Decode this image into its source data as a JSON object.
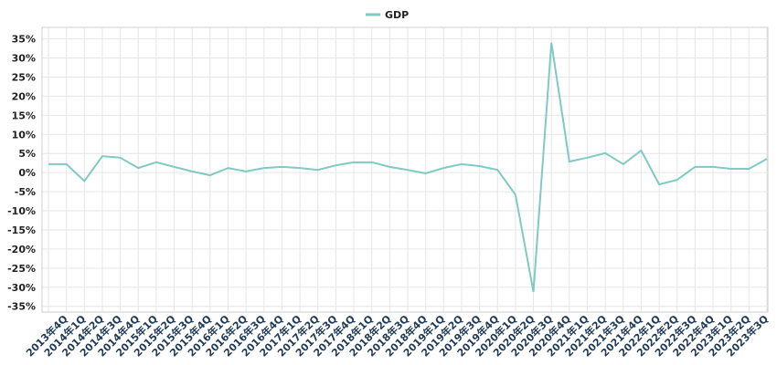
{
  "chart_data": {
    "type": "line",
    "categories": [
      null,
      "2013年4Q",
      "2014年1Q",
      "2014年2Q",
      "2014年3Q",
      "2014年4Q",
      "2015年1Q",
      "2015年2Q",
      "2015年3Q",
      "2015年4Q",
      "2016年1Q",
      "2016年2Q",
      "2016年3Q",
      "2016年4Q",
      "2017年1Q",
      "2017年2Q",
      "2017年3Q",
      "2017年4Q",
      "2018年1Q",
      "2018年2Q",
      "2018年3Q",
      "2018年4Q",
      "2019年1Q",
      "2019年2Q",
      "2019年3Q",
      "2019年4Q",
      "2020年1Q",
      "2020年2Q",
      "2020年3Q",
      "2020年4Q",
      "2021年1Q",
      "2021年2Q",
      "2021年3Q",
      "2021年4Q",
      "2022年1Q",
      "2022年2Q",
      "2022年3Q",
      "2022年4Q",
      "2023年1Q",
      "2023年2Q",
      "2023年3Q"
    ],
    "series": [
      {
        "name": "GDP",
        "color": "#7fcac3",
        "values": [
          2.2,
          2.2,
          -2.2,
          4.3,
          3.9,
          1.2,
          2.7,
          1.5,
          0.3,
          -0.7,
          1.2,
          0.3,
          1.2,
          1.5,
          1.2,
          0.7,
          1.9,
          2.7,
          2.7,
          1.5,
          0.7,
          -0.2,
          1.2,
          2.2,
          1.7,
          0.7,
          -5.8,
          -31.2,
          34.0,
          2.9,
          3.9,
          5.1,
          2.2,
          5.8,
          -3.1,
          -1.9,
          1.5,
          1.5,
          1.0,
          1.0,
          3.6
        ]
      }
    ],
    "ylim": [
      -36.5,
      38
    ],
    "yticks": [
      {
        "value": -35,
        "label": "-35%"
      },
      {
        "value": -30,
        "label": "-30%"
      },
      {
        "value": -25,
        "label": "-25%"
      },
      {
        "value": -20,
        "label": "-20%"
      },
      {
        "value": -15,
        "label": "-15%"
      },
      {
        "value": -10,
        "label": "-10%"
      },
      {
        "value": -5,
        "label": "-5%"
      },
      {
        "value": 0,
        "label": "0%"
      },
      {
        "value": 5,
        "label": "5%"
      },
      {
        "value": 10,
        "label": "10%"
      },
      {
        "value": 15,
        "label": "15%"
      },
      {
        "value": 20,
        "label": "20%"
      },
      {
        "value": 25,
        "label": "25%"
      },
      {
        "value": 30,
        "label": "30%"
      },
      {
        "value": 35,
        "label": "35%"
      }
    ],
    "grid": true,
    "legend": "top"
  }
}
